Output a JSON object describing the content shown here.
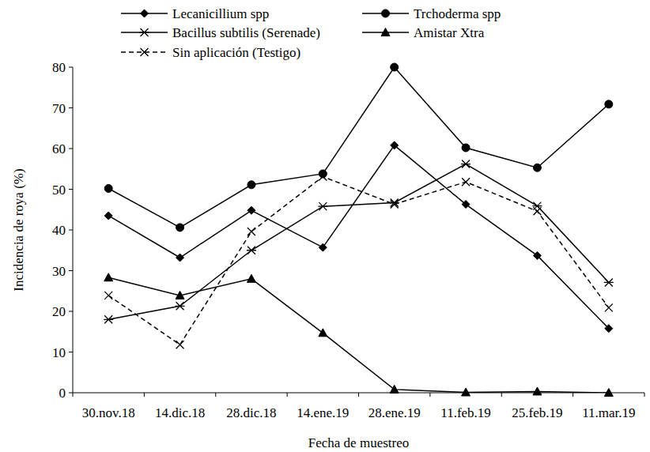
{
  "chart_data": {
    "type": "line",
    "x_label": "Fecha de muestreo",
    "y_label": "Incidencia de roya (%)",
    "categories": [
      "30.nov.18",
      "14.dic.18",
      "28.dic.18",
      "14.ene.19",
      "28.ene.19",
      "11.feb.19",
      "25.feb.19",
      "11.mar.19"
    ],
    "series": [
      {
        "name": "Lecanicillium spp",
        "color": "#000000",
        "marker": "diamond",
        "line_style": "solid",
        "values": [
          43.5,
          33.2,
          44.8,
          35.7,
          60.8,
          46.3,
          33.7,
          15.8
        ]
      },
      {
        "name": "Trchoderma spp",
        "color": "#000000",
        "marker": "circle",
        "line_style": "solid",
        "values": [
          50.2,
          40.6,
          51.1,
          53.8,
          80.0,
          60.2,
          55.3,
          70.9
        ]
      },
      {
        "name": "Bacillus subtilis (Serenade)",
        "color": "#000000",
        "marker": "asterisk",
        "line_style": "solid",
        "values": [
          18.0,
          21.3,
          35.0,
          45.8,
          46.7,
          56.2,
          45.9,
          27.1
        ]
      },
      {
        "name": "Amistar Xtra",
        "color": "#000000",
        "marker": "triangle",
        "line_style": "solid",
        "values": [
          28.3,
          23.9,
          28.0,
          14.7,
          0.8,
          0.1,
          0.3,
          0.0
        ]
      },
      {
        "name": "Sin aplicación (Testigo)",
        "color": "#000000",
        "marker": "x",
        "line_style": "dashed",
        "values": [
          23.9,
          11.8,
          39.6,
          53.1,
          46.3,
          51.8,
          44.6,
          20.9
        ]
      }
    ],
    "ylim": [
      0,
      80
    ],
    "yticks": [
      0,
      10,
      20,
      30,
      40,
      50,
      60,
      70,
      80
    ],
    "grid": false,
    "legend": "top"
  }
}
